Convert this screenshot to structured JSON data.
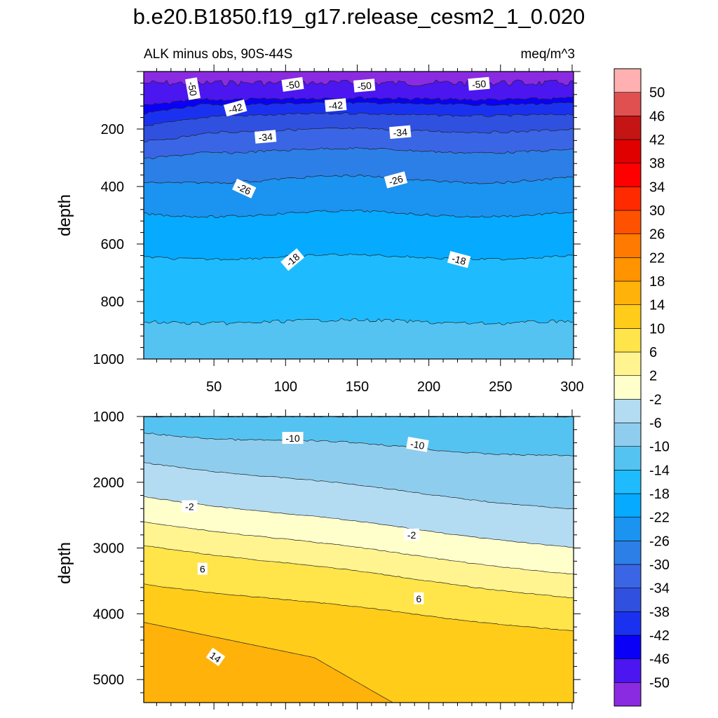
{
  "chart_data": {
    "type": "contour",
    "title": "b.e20.B1850.f19_g17.release_cesm2_1_0.020",
    "subtitle_left": "ALK minus obs, 90S-44S",
    "subtitle_right": "meq/m^3",
    "colorbar": {
      "levels": [
        "-50",
        "-46",
        "-42",
        "-38",
        "-34",
        "-30",
        "-26",
        "-22",
        "-18",
        "-14",
        "-10",
        "-6",
        "-2",
        "2",
        "6",
        "10",
        "14",
        "18",
        "22",
        "26",
        "30",
        "34",
        "38",
        "42",
        "46",
        "50"
      ],
      "colors": [
        "#8A2BE2",
        "#4B16F0",
        "#0A00F8",
        "#1A32F0",
        "#3050E0",
        "#3A66E6",
        "#2C7FE6",
        "#1B93F0",
        "#06AAFF",
        "#1EBCFF",
        "#55C3F2",
        "#8FCDEE",
        "#B3DCF2",
        "#FFFFCC",
        "#FFF490",
        "#FFE44A",
        "#FFCC1A",
        "#FFB20A",
        "#FF9300",
        "#FF7A00",
        "#FF5200",
        "#FF2A00",
        "#FF0000",
        "#E00000",
        "#C41414",
        "#E05050",
        "#FFB0B0"
      ]
    },
    "panels": [
      {
        "name": "upper",
        "xlabel": "",
        "ylabel": "depth",
        "x_ticks": [
          "50",
          "100",
          "150",
          "200",
          "250",
          "300"
        ],
        "y_ticks": [
          "200",
          "400",
          "600",
          "800",
          "1000"
        ],
        "xlim": [
          1,
          301
        ],
        "ylim": [
          1000,
          0
        ],
        "contour_labels": [
          {
            "text": "-50",
            "x": 35,
            "y": 60
          },
          {
            "text": "-50",
            "x": 105,
            "y": 46
          },
          {
            "text": "-50",
            "x": 155,
            "y": 50
          },
          {
            "text": "-50",
            "x": 235,
            "y": 44
          },
          {
            "text": "-42",
            "x": 65,
            "y": 128
          },
          {
            "text": "-42",
            "x": 135,
            "y": 118
          },
          {
            "text": "-34",
            "x": 86,
            "y": 228
          },
          {
            "text": "-34",
            "x": 180,
            "y": 212
          },
          {
            "text": "-26",
            "x": 71,
            "y": 408
          },
          {
            "text": "-26",
            "x": 177,
            "y": 378
          },
          {
            "text": "-18",
            "x": 105,
            "y": 655
          },
          {
            "text": "-18",
            "x": 221,
            "y": 655
          }
        ]
      },
      {
        "name": "lower",
        "xlabel": "",
        "ylabel": "depth",
        "x_ticks": [],
        "y_ticks": [
          "1000",
          "2000",
          "3000",
          "4000",
          "5000"
        ],
        "xlim": [
          1,
          301
        ],
        "ylim": [
          5350,
          1000
        ],
        "contour_labels": [
          {
            "text": "-10",
            "x": 105,
            "y": 1330
          },
          {
            "text": "-10",
            "x": 192,
            "y": 1430
          },
          {
            "text": "-2",
            "x": 33,
            "y": 2370
          },
          {
            "text": "-2",
            "x": 188,
            "y": 2800
          },
          {
            "text": "6",
            "x": 42,
            "y": 3320
          },
          {
            "text": "6",
            "x": 193,
            "y": 3770
          },
          {
            "text": "14",
            "x": 51,
            "y": 4660
          }
        ]
      }
    ]
  }
}
